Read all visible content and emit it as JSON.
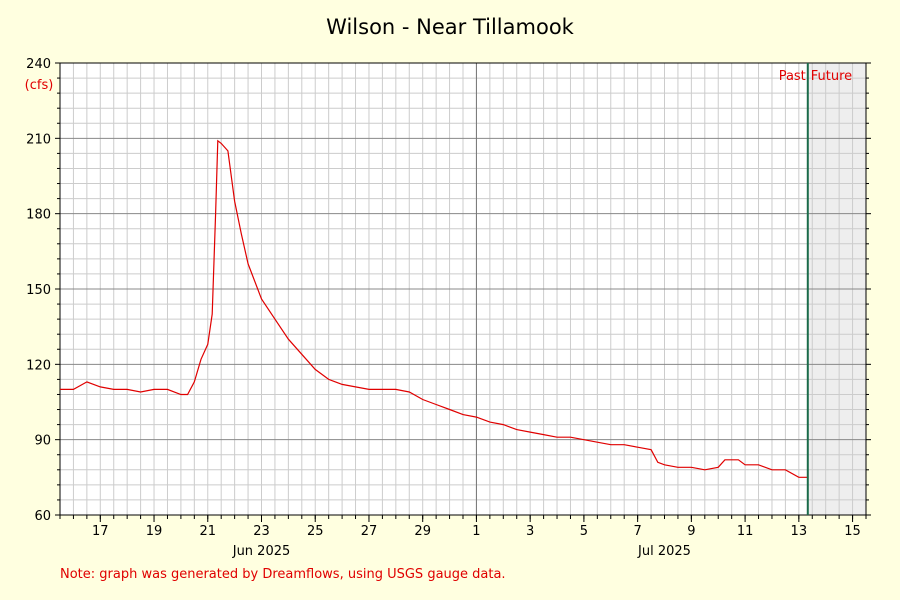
{
  "chart_data": {
    "type": "line",
    "title": "Wilson - Near Tillamook",
    "ylabel": "(cfs)",
    "xlabel": "",
    "ylim": [
      60,
      240
    ],
    "yticks": [
      60,
      90,
      120,
      150,
      180,
      210,
      240
    ],
    "x_range": [
      "2025-06-15T12:00",
      "2025-07-15T12:00"
    ],
    "x_tick_labels": [
      {
        "date": "2025-06-17",
        "label": "17"
      },
      {
        "date": "2025-06-19",
        "label": "19"
      },
      {
        "date": "2025-06-21",
        "label": "21"
      },
      {
        "date": "2025-06-23",
        "label": "23"
      },
      {
        "date": "2025-06-25",
        "label": "25"
      },
      {
        "date": "2025-06-27",
        "label": "27"
      },
      {
        "date": "2025-06-29",
        "label": "29"
      },
      {
        "date": "2025-07-01",
        "label": "1"
      },
      {
        "date": "2025-07-03",
        "label": "3"
      },
      {
        "date": "2025-07-05",
        "label": "5"
      },
      {
        "date": "2025-07-07",
        "label": "7"
      },
      {
        "date": "2025-07-09",
        "label": "9"
      },
      {
        "date": "2025-07-11",
        "label": "11"
      },
      {
        "date": "2025-07-13",
        "label": "13"
      },
      {
        "date": "2025-07-15",
        "label": "15"
      }
    ],
    "month_labels": [
      {
        "date": "2025-06-23",
        "label": "Jun 2025"
      },
      {
        "date": "2025-07-08",
        "label": "Jul 2025"
      }
    ],
    "grid": true,
    "now_marker": {
      "date": "2025-07-13T08:00",
      "past_label": "Past",
      "future_label": "Future"
    },
    "series": [
      {
        "color": "#e00000",
        "points": [
          [
            "2025-06-15T12:00",
            110
          ],
          [
            "2025-06-16T00:00",
            110
          ],
          [
            "2025-06-16T12:00",
            113
          ],
          [
            "2025-06-17T00:00",
            111
          ],
          [
            "2025-06-17T12:00",
            110
          ],
          [
            "2025-06-18T00:00",
            110
          ],
          [
            "2025-06-18T12:00",
            109
          ],
          [
            "2025-06-19T00:00",
            110
          ],
          [
            "2025-06-19T12:00",
            110
          ],
          [
            "2025-06-20T00:00",
            108
          ],
          [
            "2025-06-20T06:00",
            108
          ],
          [
            "2025-06-20T12:00",
            113
          ],
          [
            "2025-06-20T18:00",
            122
          ],
          [
            "2025-06-21T00:00",
            128
          ],
          [
            "2025-06-21T04:00",
            140
          ],
          [
            "2025-06-21T07:00",
            180
          ],
          [
            "2025-06-21T09:00",
            209
          ],
          [
            "2025-06-21T12:00",
            208
          ],
          [
            "2025-06-21T18:00",
            205
          ],
          [
            "2025-06-22T00:00",
            185
          ],
          [
            "2025-06-22T06:00",
            172
          ],
          [
            "2025-06-22T12:00",
            160
          ],
          [
            "2025-06-23T00:00",
            146
          ],
          [
            "2025-06-23T12:00",
            138
          ],
          [
            "2025-06-24T00:00",
            130
          ],
          [
            "2025-06-24T12:00",
            124
          ],
          [
            "2025-06-25T00:00",
            118
          ],
          [
            "2025-06-25T12:00",
            114
          ],
          [
            "2025-06-26T00:00",
            112
          ],
          [
            "2025-06-26T12:00",
            111
          ],
          [
            "2025-06-27T00:00",
            110
          ],
          [
            "2025-06-27T12:00",
            110
          ],
          [
            "2025-06-28T00:00",
            110
          ],
          [
            "2025-06-28T12:00",
            109
          ],
          [
            "2025-06-29T00:00",
            106
          ],
          [
            "2025-06-29T12:00",
            104
          ],
          [
            "2025-06-30T00:00",
            102
          ],
          [
            "2025-06-30T12:00",
            100
          ],
          [
            "2025-07-01T00:00",
            99
          ],
          [
            "2025-07-01T12:00",
            97
          ],
          [
            "2025-07-02T00:00",
            96
          ],
          [
            "2025-07-02T12:00",
            94
          ],
          [
            "2025-07-03T00:00",
            93
          ],
          [
            "2025-07-03T12:00",
            92
          ],
          [
            "2025-07-04T00:00",
            91
          ],
          [
            "2025-07-04T12:00",
            91
          ],
          [
            "2025-07-05T00:00",
            90
          ],
          [
            "2025-07-05T12:00",
            89
          ],
          [
            "2025-07-06T00:00",
            88
          ],
          [
            "2025-07-06T12:00",
            88
          ],
          [
            "2025-07-07T00:00",
            87
          ],
          [
            "2025-07-07T12:00",
            86
          ],
          [
            "2025-07-07T18:00",
            81
          ],
          [
            "2025-07-08T00:00",
            80
          ],
          [
            "2025-07-08T12:00",
            79
          ],
          [
            "2025-07-09T00:00",
            79
          ],
          [
            "2025-07-09T12:00",
            78
          ],
          [
            "2025-07-10T00:00",
            79
          ],
          [
            "2025-07-10T06:00",
            82
          ],
          [
            "2025-07-10T18:00",
            82
          ],
          [
            "2025-07-11T00:00",
            80
          ],
          [
            "2025-07-11T12:00",
            80
          ],
          [
            "2025-07-12T00:00",
            78
          ],
          [
            "2025-07-12T12:00",
            78
          ],
          [
            "2025-07-13T00:00",
            75
          ],
          [
            "2025-07-13T08:00",
            75
          ]
        ]
      }
    ]
  },
  "footer": {
    "note": "Note: graph was generated by Dreamflows, using USGS gauge data."
  }
}
